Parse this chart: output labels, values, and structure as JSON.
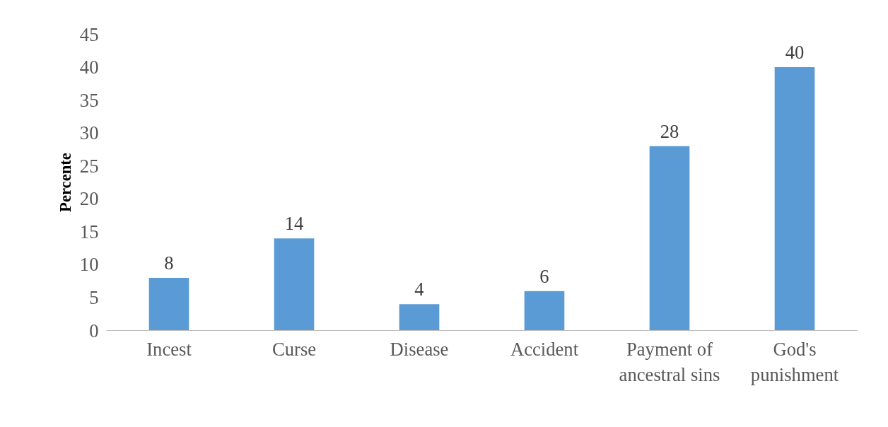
{
  "chart_data": {
    "type": "bar",
    "ylabel": "Percente",
    "categories": [
      "Incest",
      "Curse",
      "Disease",
      "Accident",
      "Payment of ancestral sins",
      "God's punishment"
    ],
    "values": [
      8,
      14,
      4,
      6,
      28,
      40
    ],
    "color": "#5b9bd5",
    "ylim": [
      0,
      45
    ],
    "yticks": [
      0,
      5,
      10,
      15,
      20,
      25,
      30,
      35,
      40,
      45
    ],
    "grid": false,
    "data_labels": true
  }
}
